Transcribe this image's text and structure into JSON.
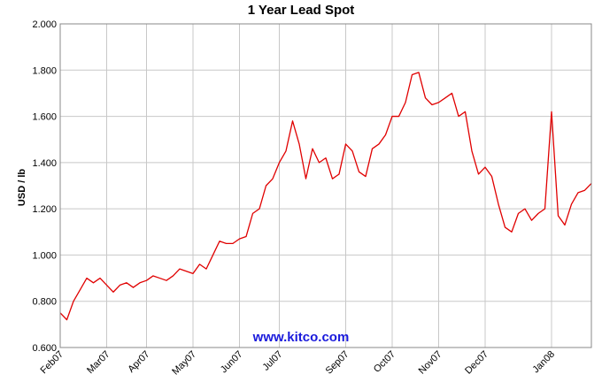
{
  "chart_data": {
    "type": "line",
    "title": "1 Year Lead Spot",
    "y_label": "USD / lb",
    "annotation": "www.kitco.com",
    "categories": [
      "Feb07",
      null,
      null,
      null,
      null,
      null,
      null,
      "Mar07",
      null,
      null,
      null,
      null,
      null,
      "Apr07",
      null,
      null,
      null,
      null,
      null,
      null,
      "May07",
      null,
      null,
      null,
      null,
      null,
      null,
      "Jun07",
      null,
      null,
      null,
      null,
      null,
      "Jul07",
      null,
      null,
      null,
      null,
      null,
      null,
      null,
      null,
      null,
      "Sep07",
      null,
      null,
      null,
      null,
      null,
      null,
      "Oct07",
      null,
      null,
      null,
      null,
      null,
      null,
      "Nov07",
      null,
      null,
      null,
      null,
      null,
      null,
      "Dec07",
      null,
      null,
      null,
      null,
      null,
      null,
      null,
      null,
      null,
      "Jan08",
      null,
      null,
      null,
      null,
      null,
      null
    ],
    "series": [
      {
        "name": "Lead",
        "color": "#e00000",
        "values": [
          0.75,
          0.72,
          0.8,
          0.85,
          0.9,
          0.88,
          0.9,
          0.87,
          0.84,
          0.87,
          0.88,
          0.86,
          0.88,
          0.89,
          0.91,
          0.9,
          0.89,
          0.91,
          0.94,
          0.93,
          0.92,
          0.96,
          0.94,
          1.0,
          1.06,
          1.05,
          1.05,
          1.07,
          1.08,
          1.18,
          1.2,
          1.3,
          1.33,
          1.4,
          1.45,
          1.58,
          1.48,
          1.33,
          1.46,
          1.4,
          1.42,
          1.33,
          1.35,
          1.48,
          1.45,
          1.36,
          1.34,
          1.46,
          1.48,
          1.52,
          1.6,
          1.6,
          1.66,
          1.78,
          1.79,
          1.68,
          1.65,
          1.66,
          1.68,
          1.7,
          1.6,
          1.62,
          1.45,
          1.35,
          1.38,
          1.34,
          1.22,
          1.12,
          1.1,
          1.18,
          1.2,
          1.15,
          1.18,
          1.2,
          1.62,
          1.17,
          1.13,
          1.22,
          1.27,
          1.28,
          1.31
        ]
      }
    ],
    "ylim": [
      0.6,
      2.0
    ],
    "yticks": [
      {
        "value": 0.6,
        "label": "0.600"
      },
      {
        "value": 0.8,
        "label": "0.800"
      },
      {
        "value": 1.0,
        "label": "1.000"
      },
      {
        "value": 1.2,
        "label": "1.200"
      },
      {
        "value": 1.4,
        "label": "1.400"
      },
      {
        "value": 1.6,
        "label": "1.600"
      },
      {
        "value": 1.8,
        "label": "1.800"
      },
      {
        "value": 2.0,
        "label": "2.000"
      }
    ],
    "grid": true
  }
}
